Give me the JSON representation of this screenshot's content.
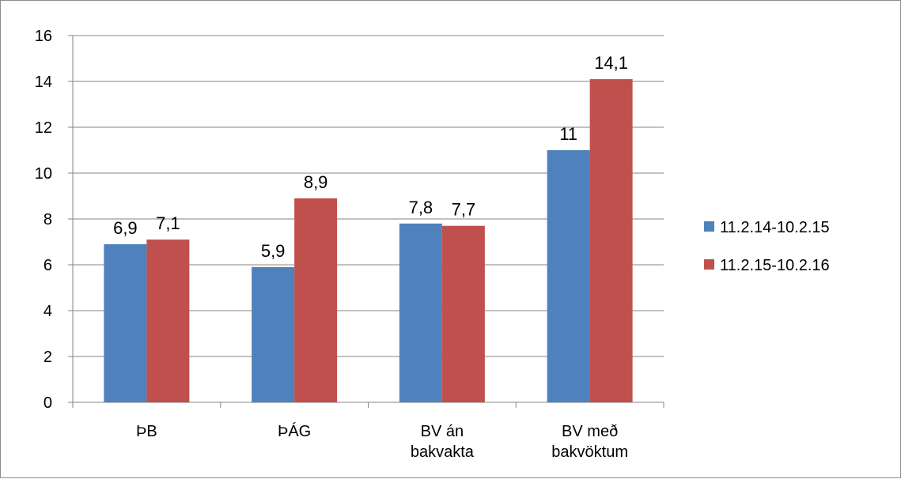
{
  "chart_data": {
    "type": "bar",
    "categories": [
      [
        "ÞB"
      ],
      [
        "ÞÁG"
      ],
      [
        "BV án",
        "bakvakta"
      ],
      [
        "BV með",
        "bakvöktum"
      ]
    ],
    "series": [
      {
        "name": "11.2.14-10.2.15",
        "color": "#4f81bd",
        "values": [
          6.9,
          5.9,
          7.8,
          11
        ],
        "labels": [
          "6,9",
          "5,9",
          "7,8",
          "11"
        ]
      },
      {
        "name": "11.2.15-10.2.16",
        "color": "#c0504d",
        "values": [
          7.1,
          8.9,
          7.7,
          14.1
        ],
        "labels": [
          "7,1",
          "8,9",
          "7,7",
          "14,1"
        ]
      }
    ],
    "yticks": [
      0,
      2,
      4,
      6,
      8,
      10,
      12,
      14,
      16
    ],
    "ylim": [
      0,
      16
    ],
    "grid": true,
    "legend_position": "right",
    "title": "",
    "xlabel": "",
    "ylabel": ""
  }
}
